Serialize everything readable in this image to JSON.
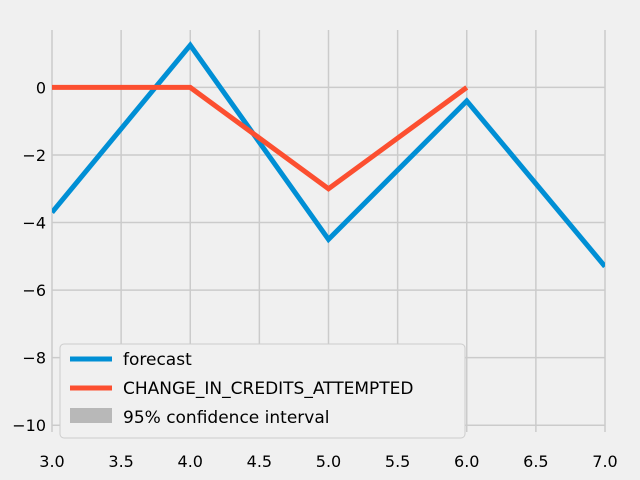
{
  "chart_data": {
    "type": "line",
    "title": "",
    "xlabel": "",
    "ylabel": "",
    "xlim": [
      3.0,
      7.0
    ],
    "ylim": [
      -10.2,
      1.7
    ],
    "grid": true,
    "legend_position": "lower-left",
    "x_ticks": [
      "3.0",
      "3.5",
      "4.0",
      "4.5",
      "5.0",
      "5.5",
      "6.0",
      "6.5",
      "7.0"
    ],
    "y_ticks": [
      "0",
      "−2",
      "−4",
      "−6",
      "−8",
      "−10"
    ],
    "x_tick_values": [
      3.0,
      3.5,
      4.0,
      4.5,
      5.0,
      5.5,
      6.0,
      6.5,
      7.0
    ],
    "y_tick_values": [
      0,
      -2,
      -4,
      -6,
      -8,
      -10
    ],
    "series": [
      {
        "name": "forecast",
        "color": "#008fd5",
        "x": [
          3,
          4,
          5,
          6,
          7
        ],
        "y": [
          -3.7,
          1.25,
          -4.5,
          -0.4,
          -5.3
        ]
      },
      {
        "name": "CHANGE_IN_CREDITS_ATTEMPTED",
        "color": "#fc4f30",
        "x": [
          3,
          4,
          5,
          6
        ],
        "y": [
          0,
          0,
          -3,
          0
        ]
      }
    ],
    "legend": [
      {
        "label": "forecast",
        "color": "#008fd5",
        "kind": "line"
      },
      {
        "label": "CHANGE_IN_CREDITS_ATTEMPTED",
        "color": "#fc4f30",
        "kind": "line"
      },
      {
        "label": "95% confidence interval",
        "color": "#b8b8b8",
        "kind": "patch"
      }
    ]
  }
}
